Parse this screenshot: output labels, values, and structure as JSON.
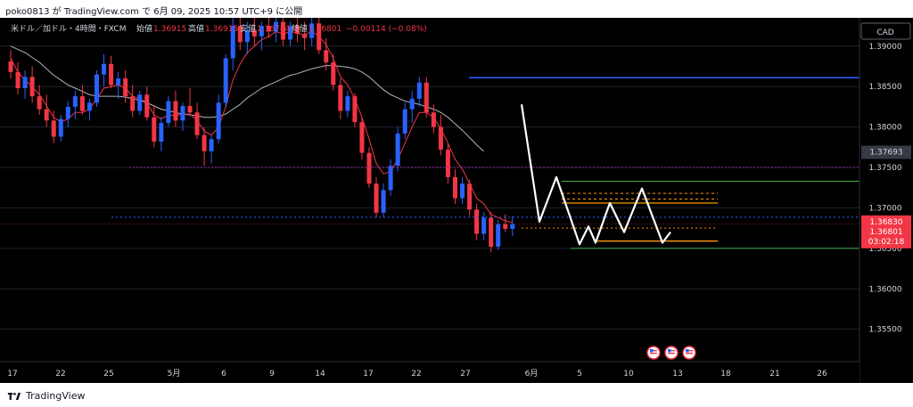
{
  "header": {
    "publisher_line": "poko0813 が TradingView.com で 6月 09, 2025 10:57 UTC+9 に公開"
  },
  "footer": {
    "brand": "TradingView"
  },
  "legend": {
    "symbol": "米ドル／加ドル・4時間・FXCM",
    "open_label": "始値",
    "open": "1.36915",
    "high_label": "高値",
    "high": "1.36915",
    "low_label": "安値",
    "low": "1.36784",
    "close_label": "終値",
    "close": "1.36801",
    "change": "−0.00114 (−0.08%)"
  },
  "price_axis": {
    "currency": "CAD",
    "ticks": [
      "1.39000",
      "1.38500",
      "1.38000",
      "1.37500",
      "1.37000",
      "1.36500",
      "1.36000",
      "1.35500"
    ],
    "marker_gray": "1.37693",
    "marker_red": "1.36830",
    "marker_price": "1.36801",
    "marker_countdown": "03:02:18"
  },
  "time_axis": {
    "ticks": [
      "17",
      "22",
      "25",
      "5月",
      "6",
      "9",
      "14",
      "17",
      "22",
      "27",
      "6月",
      "5",
      "10",
      "13",
      "18",
      "21",
      "26"
    ]
  },
  "colors": {
    "background": "#000000",
    "bull": "#2962ff",
    "bear": "#f23645",
    "ma_fast": "#f23645",
    "ma_slow": "#b2b5be",
    "resistance": "#2962ff",
    "zone": "#ff9800",
    "support": "#4caf50",
    "pattern": "#ffffff",
    "purple": "#9c27b0"
  },
  "chart_data": {
    "type": "candlestick",
    "y_scale": "linear",
    "ylim": [
      1.351,
      1.3935
    ],
    "grid": "horizontal",
    "candles": [
      {
        "o": 1.3881,
        "h": 1.3895,
        "l": 1.386,
        "c": 1.3868
      },
      {
        "o": 1.3868,
        "h": 1.388,
        "l": 1.384,
        "c": 1.3848
      },
      {
        "o": 1.3848,
        "h": 1.387,
        "l": 1.3835,
        "c": 1.3862
      },
      {
        "o": 1.3862,
        "h": 1.3875,
        "l": 1.383,
        "c": 1.3838
      },
      {
        "o": 1.3838,
        "h": 1.3852,
        "l": 1.3815,
        "c": 1.3822
      },
      {
        "o": 1.3822,
        "h": 1.384,
        "l": 1.38,
        "c": 1.3808
      },
      {
        "o": 1.3808,
        "h": 1.382,
        "l": 1.378,
        "c": 1.3788
      },
      {
        "o": 1.3788,
        "h": 1.3815,
        "l": 1.3782,
        "c": 1.381
      },
      {
        "o": 1.381,
        "h": 1.3832,
        "l": 1.38,
        "c": 1.3825
      },
      {
        "o": 1.3825,
        "h": 1.3845,
        "l": 1.381,
        "c": 1.3838
      },
      {
        "o": 1.3838,
        "h": 1.3852,
        "l": 1.3815,
        "c": 1.382
      },
      {
        "o": 1.382,
        "h": 1.3835,
        "l": 1.3808,
        "c": 1.383
      },
      {
        "o": 1.383,
        "h": 1.387,
        "l": 1.3825,
        "c": 1.3865
      },
      {
        "o": 1.3865,
        "h": 1.389,
        "l": 1.385,
        "c": 1.3878
      },
      {
        "o": 1.3878,
        "h": 1.3888,
        "l": 1.3848,
        "c": 1.3852
      },
      {
        "o": 1.3852,
        "h": 1.3868,
        "l": 1.3835,
        "c": 1.386
      },
      {
        "o": 1.386,
        "h": 1.387,
        "l": 1.383,
        "c": 1.3838
      },
      {
        "o": 1.3838,
        "h": 1.3852,
        "l": 1.3812,
        "c": 1.382
      },
      {
        "o": 1.382,
        "h": 1.3845,
        "l": 1.3815,
        "c": 1.384
      },
      {
        "o": 1.384,
        "h": 1.385,
        "l": 1.3808,
        "c": 1.3812
      },
      {
        "o": 1.3812,
        "h": 1.3826,
        "l": 1.3775,
        "c": 1.3782
      },
      {
        "o": 1.3782,
        "h": 1.3812,
        "l": 1.377,
        "c": 1.3805
      },
      {
        "o": 1.3805,
        "h": 1.3838,
        "l": 1.38,
        "c": 1.3832
      },
      {
        "o": 1.3832,
        "h": 1.3845,
        "l": 1.38,
        "c": 1.3808
      },
      {
        "o": 1.3808,
        "h": 1.383,
        "l": 1.3795,
        "c": 1.3826
      },
      {
        "o": 1.3826,
        "h": 1.3848,
        "l": 1.3815,
        "c": 1.3818
      },
      {
        "o": 1.3818,
        "h": 1.383,
        "l": 1.3785,
        "c": 1.379
      },
      {
        "o": 1.379,
        "h": 1.38,
        "l": 1.3752,
        "c": 1.377
      },
      {
        "o": 1.377,
        "h": 1.379,
        "l": 1.3755,
        "c": 1.3785
      },
      {
        "o": 1.3785,
        "h": 1.384,
        "l": 1.378,
        "c": 1.383
      },
      {
        "o": 1.383,
        "h": 1.389,
        "l": 1.3825,
        "c": 1.3885
      },
      {
        "o": 1.3885,
        "h": 1.3935,
        "l": 1.387,
        "c": 1.3925
      },
      {
        "o": 1.3925,
        "h": 1.3935,
        "l": 1.3895,
        "c": 1.3905
      },
      {
        "o": 1.3905,
        "h": 1.393,
        "l": 1.389,
        "c": 1.392
      },
      {
        "o": 1.392,
        "h": 1.3935,
        "l": 1.39,
        "c": 1.3912
      },
      {
        "o": 1.3912,
        "h": 1.393,
        "l": 1.3895,
        "c": 1.3925
      },
      {
        "o": 1.3925,
        "h": 1.3935,
        "l": 1.391,
        "c": 1.3918
      },
      {
        "o": 1.3918,
        "h": 1.3935,
        "l": 1.3905,
        "c": 1.393
      },
      {
        "o": 1.393,
        "h": 1.3935,
        "l": 1.39,
        "c": 1.3908
      },
      {
        "o": 1.3908,
        "h": 1.393,
        "l": 1.39,
        "c": 1.3925
      },
      {
        "o": 1.3925,
        "h": 1.3935,
        "l": 1.3905,
        "c": 1.3915
      },
      {
        "o": 1.3915,
        "h": 1.393,
        "l": 1.3895,
        "c": 1.391
      },
      {
        "o": 1.391,
        "h": 1.3935,
        "l": 1.39,
        "c": 1.3928
      },
      {
        "o": 1.3928,
        "h": 1.3935,
        "l": 1.389,
        "c": 1.3895
      },
      {
        "o": 1.3895,
        "h": 1.391,
        "l": 1.387,
        "c": 1.388
      },
      {
        "o": 1.388,
        "h": 1.389,
        "l": 1.3845,
        "c": 1.3852
      },
      {
        "o": 1.3852,
        "h": 1.386,
        "l": 1.381,
        "c": 1.382
      },
      {
        "o": 1.382,
        "h": 1.3845,
        "l": 1.3812,
        "c": 1.3838
      },
      {
        "o": 1.3838,
        "h": 1.3842,
        "l": 1.38,
        "c": 1.3806
      },
      {
        "o": 1.3806,
        "h": 1.3812,
        "l": 1.376,
        "c": 1.3768
      },
      {
        "o": 1.3768,
        "h": 1.3775,
        "l": 1.3725,
        "c": 1.373
      },
      {
        "o": 1.373,
        "h": 1.3738,
        "l": 1.3688,
        "c": 1.3694
      },
      {
        "o": 1.3694,
        "h": 1.373,
        "l": 1.3688,
        "c": 1.3722
      },
      {
        "o": 1.3722,
        "h": 1.376,
        "l": 1.3715,
        "c": 1.3752
      },
      {
        "o": 1.3752,
        "h": 1.38,
        "l": 1.3745,
        "c": 1.3792
      },
      {
        "o": 1.3792,
        "h": 1.383,
        "l": 1.3785,
        "c": 1.3822
      },
      {
        "o": 1.3822,
        "h": 1.3845,
        "l": 1.3805,
        "c": 1.3835
      },
      {
        "o": 1.3835,
        "h": 1.3862,
        "l": 1.3825,
        "c": 1.3855
      },
      {
        "o": 1.3855,
        "h": 1.3862,
        "l": 1.3812,
        "c": 1.3818
      },
      {
        "o": 1.3818,
        "h": 1.3828,
        "l": 1.3792,
        "c": 1.38
      },
      {
        "o": 1.38,
        "h": 1.3815,
        "l": 1.3765,
        "c": 1.3772
      },
      {
        "o": 1.3772,
        "h": 1.378,
        "l": 1.373,
        "c": 1.3738
      },
      {
        "o": 1.3738,
        "h": 1.3748,
        "l": 1.3705,
        "c": 1.3712
      },
      {
        "o": 1.3712,
        "h": 1.3738,
        "l": 1.3705,
        "c": 1.373
      },
      {
        "o": 1.373,
        "h": 1.3735,
        "l": 1.369,
        "c": 1.3698
      },
      {
        "o": 1.3698,
        "h": 1.3705,
        "l": 1.366,
        "c": 1.3668
      },
      {
        "o": 1.3668,
        "h": 1.3695,
        "l": 1.366,
        "c": 1.3688
      },
      {
        "o": 1.3688,
        "h": 1.3695,
        "l": 1.3645,
        "c": 1.3652
      },
      {
        "o": 1.3652,
        "h": 1.3685,
        "l": 1.3648,
        "c": 1.368
      },
      {
        "o": 1.368,
        "h": 1.3692,
        "l": 1.367,
        "c": 1.3674
      },
      {
        "o": 1.3674,
        "h": 1.369,
        "l": 1.3665,
        "c": 1.368
      }
    ],
    "ma_fast": [
      1.3885,
      1.3868,
      1.3858,
      1.385,
      1.384,
      1.3826,
      1.3812,
      1.3806,
      1.381,
      1.3818,
      1.3818,
      1.3822,
      1.3835,
      1.3848,
      1.385,
      1.3852,
      1.3848,
      1.3838,
      1.3835,
      1.383,
      1.3815,
      1.381,
      1.3815,
      1.3814,
      1.3816,
      1.3816,
      1.3808,
      1.3795,
      1.379,
      1.38,
      1.3825,
      1.3858,
      1.3878,
      1.3892,
      1.39,
      1.3908,
      1.3912,
      1.3918,
      1.3915,
      1.3918,
      1.3916,
      1.3914,
      1.3918,
      1.3912,
      1.3902,
      1.3885,
      1.3862,
      1.3852,
      1.3835,
      1.3812,
      1.3785,
      1.3755,
      1.3742,
      1.3745,
      1.376,
      1.378,
      1.38,
      1.3818,
      1.3818,
      1.3812,
      1.3798,
      1.378,
      1.376,
      1.3748,
      1.373,
      1.3712,
      1.3705,
      1.3692,
      1.3688,
      1.3684,
      1.3682
    ],
    "ma_slow": [
      1.39,
      1.3896,
      1.3892,
      1.3886,
      1.388,
      1.3872,
      1.3864,
      1.3858,
      1.3852,
      1.3848,
      1.3844,
      1.384,
      1.3838,
      1.3838,
      1.3838,
      1.3838,
      1.3837,
      1.3835,
      1.3833,
      1.383,
      1.3826,
      1.3822,
      1.382,
      1.3818,
      1.3816,
      1.3815,
      1.3814,
      1.3812,
      1.3812,
      1.3813,
      1.3816,
      1.3822,
      1.3828,
      1.3836,
      1.3842,
      1.3848,
      1.3852,
      1.3856,
      1.386,
      1.3864,
      1.3866,
      1.3869,
      1.3872,
      1.3874,
      1.3876,
      1.3876,
      1.3875,
      1.3874,
      1.3872,
      1.3868,
      1.3862,
      1.3854,
      1.3846,
      1.384,
      1.3836,
      1.3832,
      1.383,
      1.3828,
      1.3825,
      1.3822,
      1.3818,
      1.3812,
      1.3804,
      1.3796,
      1.3787,
      1.3778,
      1.377
    ]
  }
}
